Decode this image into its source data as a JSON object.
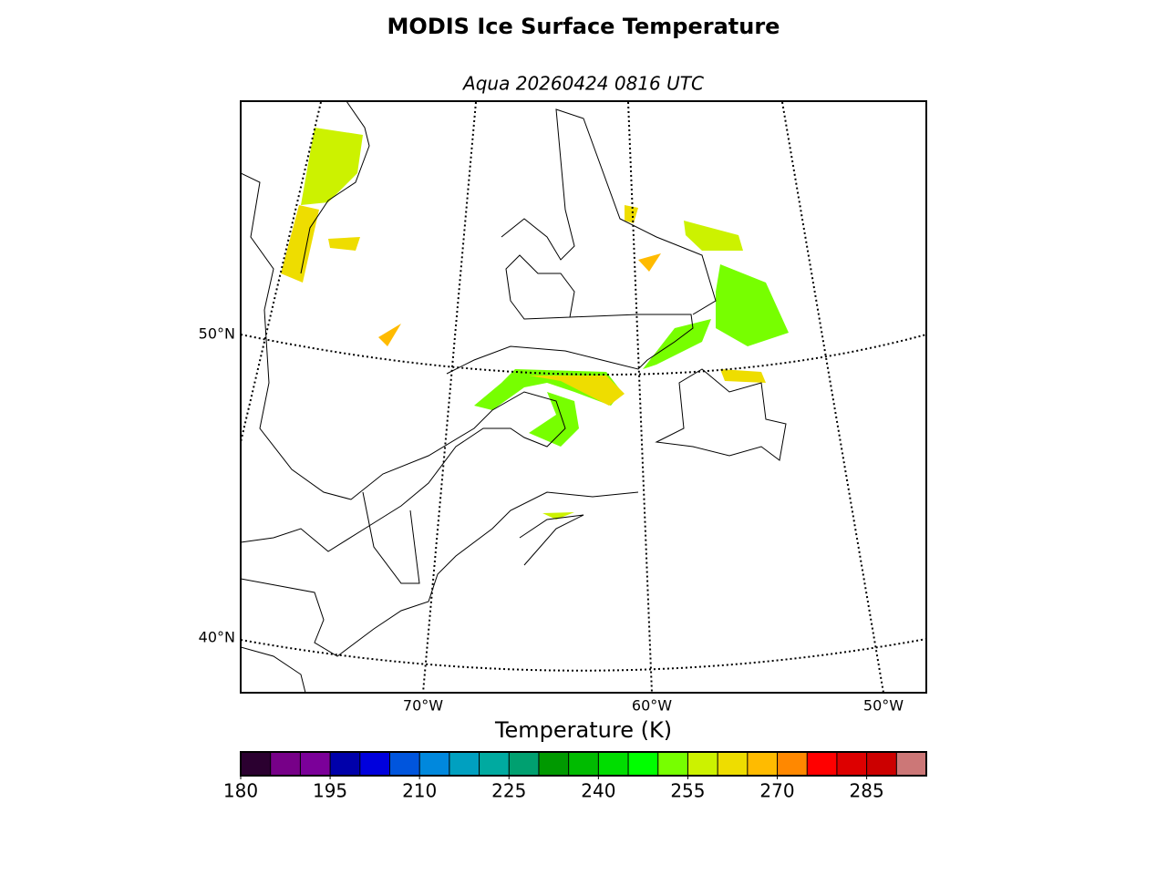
{
  "title": "MODIS Ice Surface Temperature",
  "subtitle": "Aqua 20260424 0816 UTC",
  "map": {
    "lat_labels": [
      "50°N",
      "40°N"
    ],
    "lon_labels": [
      "70°W",
      "60°W",
      "50°W"
    ]
  },
  "colorbar": {
    "label": "Temperature (K)",
    "lim": [
      180,
      295
    ],
    "ticks": [
      180,
      195,
      210,
      225,
      240,
      255,
      270,
      285
    ],
    "colors": [
      "#2b0030",
      "#770088",
      "#7b0099",
      "#0000aa",
      "#0000dd",
      "#0055dd",
      "#0088dd",
      "#00a0c0",
      "#00aaa0",
      "#00a070",
      "#009900",
      "#00bb00",
      "#00dd00",
      "#00ff00",
      "#77ff00",
      "#ccf200",
      "#eedd00",
      "#ffbb00",
      "#ff8800",
      "#ff0000",
      "#dd0000",
      "#cc0000",
      "#cc7777"
    ]
  }
}
